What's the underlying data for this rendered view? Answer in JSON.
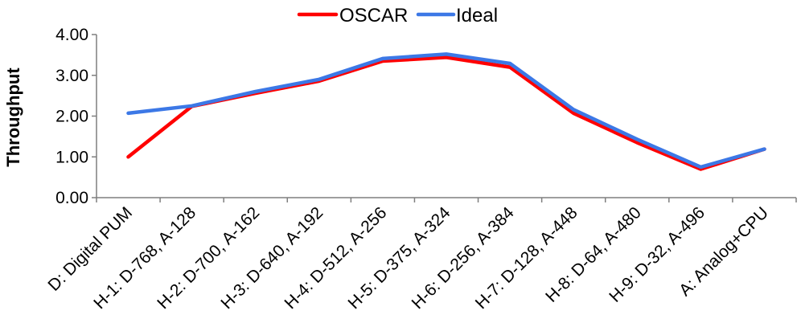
{
  "chart_data": {
    "type": "line",
    "title": "",
    "xlabel": "",
    "ylabel": "Throughput",
    "categories": [
      "D: Digital PUM",
      "H-1: D-768, A-128",
      "H-2: D-700, A-162",
      "H-3: D-640, A-192",
      "H-4: D-512, A-256",
      "H-5: D-375, A-324",
      "H-6: D-256, A-384",
      "H-7: D-128, A-448",
      "H-8: D-64, A-480",
      "H-9: D-32, A-496",
      "A: Analog+CPU"
    ],
    "series": [
      {
        "name": "OSCAR",
        "color": "#ff0000",
        "values": [
          1.0,
          2.24,
          2.56,
          2.86,
          3.35,
          3.44,
          3.2,
          2.07,
          1.35,
          0.7,
          1.19
        ]
      },
      {
        "name": "Ideal",
        "color": "#3c78e6",
        "values": [
          2.07,
          2.25,
          2.6,
          2.9,
          3.41,
          3.52,
          3.29,
          2.16,
          1.43,
          0.75,
          1.19
        ]
      }
    ],
    "ylim": [
      0,
      4
    ],
    "yticks": [
      "0.00",
      "1.00",
      "2.00",
      "3.00",
      "4.00"
    ],
    "grid": false,
    "legend_position": "top-center"
  }
}
